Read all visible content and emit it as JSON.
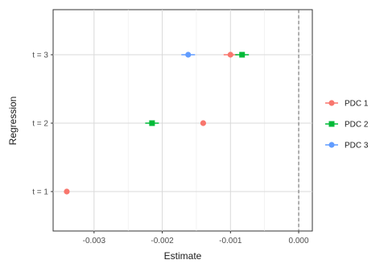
{
  "chart_data": {
    "type": "scatter",
    "title": "",
    "xlabel": "Estimate",
    "ylabel": "Regression",
    "xlim": [
      -0.0036,
      0.0002
    ],
    "x_ticks": [
      -0.003,
      -0.002,
      -0.001,
      0.0
    ],
    "x_tick_labels": [
      "-0.003",
      "-0.002",
      "-0.001",
      "0.000"
    ],
    "categories": [
      "t = 1",
      "t = 2",
      "t = 3"
    ],
    "reference_line_x": 0.0,
    "grid": true,
    "legend_position": "right",
    "series": [
      {
        "name": "PDC 1",
        "color": "#F8766D",
        "marker": "circle",
        "points": [
          {
            "category": "t = 1",
            "x": -0.0034,
            "xerr": 4e-05
          },
          {
            "category": "t = 2",
            "x": -0.0014,
            "xerr": 4e-05
          },
          {
            "category": "t = 3",
            "x": -0.001,
            "xerr": 0.0001
          }
        ]
      },
      {
        "name": "PDC 2",
        "color": "#00BA38",
        "marker": "square",
        "points": [
          {
            "category": "t = 2",
            "x": -0.00215,
            "xerr": 0.0001
          },
          {
            "category": "t = 3",
            "x": -0.00083,
            "xerr": 0.0001
          }
        ]
      },
      {
        "name": "PDC 3",
        "color": "#619CFF",
        "marker": "circle",
        "points": [
          {
            "category": "t = 3",
            "x": -0.00162,
            "xerr": 0.0001
          }
        ]
      }
    ]
  }
}
